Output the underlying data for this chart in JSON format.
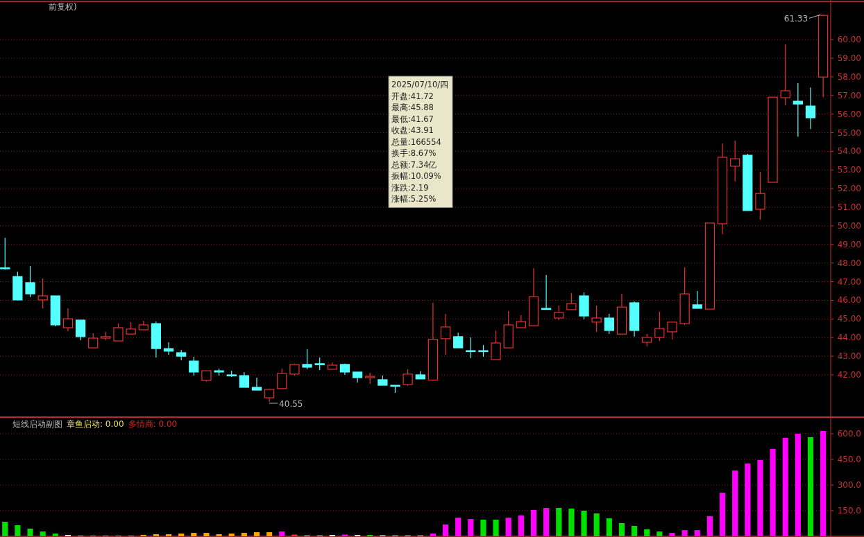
{
  "chart_data": [
    {
      "type": "candlestick",
      "title": "前复权)",
      "grid": "y",
      "categories": [
        null,
        null,
        null,
        null,
        null,
        null,
        null,
        null,
        null,
        null,
        null,
        null,
        null,
        null,
        null,
        null,
        null,
        null,
        null,
        null,
        null,
        null,
        null,
        null,
        null,
        null,
        null,
        null,
        null,
        null,
        null,
        null,
        null,
        null,
        null,
        null,
        null,
        null,
        null,
        null,
        null,
        null,
        null,
        null,
        null,
        null,
        null,
        null,
        null,
        null,
        null,
        null,
        null,
        null,
        null,
        null,
        null,
        null,
        null,
        null,
        null,
        null,
        null,
        null,
        null,
        null
      ],
      "ohlc": [
        [
          47.75,
          49.36,
          47.65,
          47.7
        ],
        [
          47.28,
          47.54,
          46.0,
          46.02
        ],
        [
          46.95,
          47.84,
          46.17,
          46.35
        ],
        [
          46.02,
          47.17,
          45.57,
          46.24
        ],
        [
          46.24,
          46.24,
          44.6,
          44.68
        ],
        [
          44.53,
          45.57,
          44.34,
          45.01
        ],
        [
          44.94,
          44.94,
          43.86,
          44.05
        ],
        [
          43.45,
          44.23,
          43.45,
          43.97
        ],
        [
          43.97,
          44.31,
          43.86,
          44.05
        ],
        [
          43.82,
          44.75,
          43.82,
          44.53
        ],
        [
          44.19,
          44.83,
          44.19,
          44.46
        ],
        [
          44.42,
          44.9,
          44.42,
          44.68
        ],
        [
          44.75,
          44.86,
          42.93,
          43.41
        ],
        [
          43.41,
          43.75,
          43.08,
          43.27
        ],
        [
          43.19,
          43.34,
          42.78,
          43.0
        ],
        [
          42.74,
          42.97,
          41.96,
          42.15
        ],
        [
          41.7,
          42.22,
          41.63,
          42.22
        ],
        [
          42.22,
          42.34,
          41.96,
          42.15
        ],
        [
          42.0,
          42.22,
          41.89,
          41.96
        ],
        [
          41.96,
          42.15,
          41.33,
          41.33
        ],
        [
          41.33,
          41.85,
          41.18,
          41.18
        ],
        [
          40.77,
          41.26,
          40.55,
          41.22
        ],
        [
          41.26,
          42.34,
          41.26,
          42.07
        ],
        [
          42.04,
          42.6,
          41.96,
          42.56
        ],
        [
          42.56,
          43.38,
          42.3,
          42.41
        ],
        [
          42.6,
          42.93,
          42.26,
          42.56
        ],
        [
          42.3,
          42.67,
          42.3,
          42.52
        ],
        [
          42.56,
          42.6,
          42.0,
          42.15
        ],
        [
          42.15,
          42.15,
          41.59,
          41.85
        ],
        [
          41.85,
          42.11,
          41.52,
          41.92
        ],
        [
          41.74,
          41.96,
          41.44,
          41.44
        ],
        [
          41.44,
          41.44,
          41.03,
          41.4
        ],
        [
          41.48,
          42.3,
          41.4,
          42.04
        ],
        [
          42.0,
          42.19,
          41.78,
          41.78
        ],
        [
          41.72,
          45.88,
          41.67,
          43.91
        ],
        [
          43.94,
          45.27,
          43.08,
          44.57
        ],
        [
          44.05,
          44.27,
          43.45,
          43.45
        ],
        [
          43.3,
          44.01,
          42.9,
          43.27
        ],
        [
          43.3,
          43.6,
          42.97,
          43.27
        ],
        [
          42.82,
          44.38,
          42.82,
          43.71
        ],
        [
          43.45,
          45.42,
          43.45,
          44.68
        ],
        [
          44.53,
          45.2,
          44.53,
          44.86
        ],
        [
          44.64,
          47.73,
          44.64,
          46.2
        ],
        [
          45.57,
          47.36,
          45.53,
          45.53
        ],
        [
          45.05,
          45.72,
          44.94,
          45.35
        ],
        [
          45.5,
          46.39,
          45.5,
          45.83
        ],
        [
          46.24,
          46.43,
          44.98,
          45.16
        ],
        [
          44.83,
          45.72,
          44.31,
          45.05
        ],
        [
          45.05,
          45.27,
          44.19,
          44.38
        ],
        [
          44.19,
          46.35,
          44.19,
          45.64
        ],
        [
          45.87,
          45.94,
          44.05,
          44.38
        ],
        [
          43.75,
          44.2,
          43.53,
          44.01
        ],
        [
          44.01,
          45.38,
          43.82,
          44.49
        ],
        [
          44.31,
          44.83,
          43.9,
          44.83
        ],
        [
          44.75,
          47.77,
          44.68,
          46.35
        ],
        [
          45.76,
          46.5,
          45.57,
          45.57
        ],
        [
          45.53,
          50.15,
          45.53,
          50.15
        ],
        [
          50.11,
          54.42,
          49.55,
          53.68
        ],
        [
          53.2,
          54.57,
          52.38,
          53.6
        ],
        [
          53.79,
          53.87,
          50.82,
          50.82
        ],
        [
          50.89,
          52.9,
          50.33,
          51.74
        ],
        [
          52.34,
          56.91,
          52.34,
          56.91
        ],
        [
          56.88,
          59.74,
          56.47,
          57.25
        ],
        [
          56.69,
          57.66,
          54.79,
          56.54
        ],
        [
          56.43,
          57.43,
          55.2,
          55.8
        ],
        [
          57.99,
          61.33,
          56.91,
          61.3
        ]
      ],
      "ylim": [
        39.73,
        62.05
      ],
      "yticks": [
        {
          "value": 42,
          "label": "42.00"
        },
        {
          "value": 43,
          "label": "43.00"
        },
        {
          "value": 44,
          "label": "44.00"
        },
        {
          "value": 45,
          "label": "45.00"
        },
        {
          "value": 46,
          "label": "46.00"
        },
        {
          "value": 47,
          "label": "47.00"
        },
        {
          "value": 48,
          "label": "48.00"
        },
        {
          "value": 49,
          "label": "49.00"
        },
        {
          "value": 50,
          "label": "50.00"
        },
        {
          "value": 51,
          "label": "51.00"
        },
        {
          "value": 52,
          "label": "52.00"
        },
        {
          "value": 53,
          "label": "53.00"
        },
        {
          "value": 54,
          "label": "54.00"
        },
        {
          "value": 55,
          "label": "55.00"
        },
        {
          "value": 56,
          "label": "56.00"
        },
        {
          "value": 57,
          "label": "57.00"
        },
        {
          "value": 58,
          "label": "58.00"
        },
        {
          "value": 59,
          "label": "59.00"
        },
        {
          "value": 60,
          "label": "60.00"
        }
      ],
      "annotations": [
        "61.33",
        "40.55",
        "2025/07/10/四",
        "开盘:41.72",
        "最高:45.88",
        "最低:41.67",
        "收盘:43.91",
        "总量:166554",
        "换手:8.67%",
        "总额:7.34亿",
        "振幅:10.09%",
        "涨跌:2.19",
        "涨幅:5.25%"
      ]
    },
    {
      "type": "bar",
      "title": "短线启动副图",
      "grid": "y",
      "categories": [
        null,
        null,
        null,
        null,
        null,
        null,
        null,
        null,
        null,
        null,
        null,
        null,
        null,
        null,
        null,
        null,
        null,
        null,
        null,
        null,
        null,
        null,
        null,
        null,
        null,
        null,
        null,
        null,
        null,
        null,
        null,
        null,
        null,
        null,
        null,
        null,
        null,
        null,
        null,
        null,
        null,
        null,
        null,
        null,
        null,
        null,
        null,
        null,
        null,
        null,
        null,
        null,
        null,
        null,
        null,
        null,
        null,
        null,
        null,
        null,
        null,
        null,
        null,
        null,
        null,
        null
      ],
      "values": [
        85,
        65,
        45,
        28,
        16,
        8,
        4,
        3,
        3,
        3,
        3,
        8,
        12,
        12,
        16,
        20,
        20,
        12,
        16,
        20,
        24,
        24,
        28,
        10,
        5,
        5,
        8,
        10,
        8,
        8,
        6,
        5,
        5,
        5,
        16,
        69,
        109,
        101,
        97,
        97,
        109,
        122,
        154,
        166,
        166,
        162,
        150,
        134,
        105,
        77,
        61,
        41,
        28,
        20,
        36,
        36,
        118,
        255,
        385,
        426,
        446,
        511,
        576,
        600,
        580,
        616
      ],
      "colors": [
        "#00e000",
        "#00e000",
        "#00e000",
        "#00e000",
        "#00e000",
        "#e0e0e0",
        "#e0e0e0",
        "#e0e0e0",
        "#e0e0e0",
        "#e0e0e0",
        "#e0e0e0",
        "#ffa500",
        "#ffa500",
        "#ffa500",
        "#ffa500",
        "#ffa500",
        "#ffa500",
        "#ffa500",
        "#ffa500",
        "#ffa500",
        "#ffa500",
        "#ffa500",
        "#ff00ff",
        "#ff3030",
        "#e0e0e0",
        "#e0e0e0",
        "#e0e0e0",
        "#ff00ff",
        "#e0e0e0",
        "#00e000",
        "#e0e0e0",
        "#e0e0e0",
        "#e0e0e0",
        "#e0e0e0",
        "#ff00ff",
        "#ff00ff",
        "#ff00ff",
        "#ff00ff",
        "#00e000",
        "#00e000",
        "#ff00ff",
        "#ff00ff",
        "#ff00ff",
        "#ff00ff",
        "#00e000",
        "#00e000",
        "#00e000",
        "#00e000",
        "#00e000",
        "#00e000",
        "#00e000",
        "#00e000",
        "#00e000",
        "#ff00ff",
        "#ff00ff",
        "#ff00ff",
        "#ff00ff",
        "#ff00ff",
        "#ff00ff",
        "#ff00ff",
        "#ff00ff",
        "#ff00ff",
        "#ff00ff",
        "#ff00ff",
        "#00e000",
        "#ff00ff"
      ],
      "ylim": [
        0,
        697
      ],
      "yticks": [
        {
          "value": 150,
          "label": "150.0"
        },
        {
          "value": 300,
          "label": "300.0"
        },
        {
          "value": 450,
          "label": "450.0"
        },
        {
          "value": 600,
          "label": "600.0"
        }
      ],
      "annotations": [
        "章鱼启动: 0.00",
        "多情商: 0.00"
      ]
    }
  ]
}
